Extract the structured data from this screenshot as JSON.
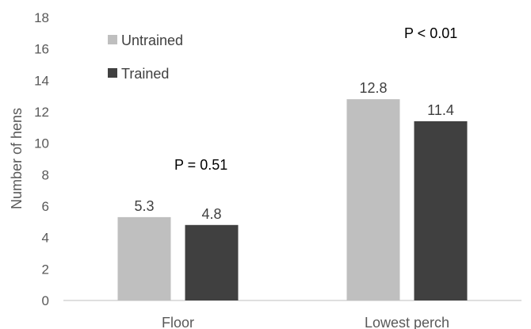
{
  "chart_data": {
    "type": "bar",
    "categories": [
      "Floor",
      "Lowest perch"
    ],
    "series": [
      {
        "name": "Untrained",
        "values": [
          5.3,
          12.8
        ],
        "color": "#bfbfbf"
      },
      {
        "name": "Trained",
        "values": [
          4.8,
          11.4
        ],
        "color": "#404040"
      }
    ],
    "data_labels": [
      [
        "5.3",
        "12.8"
      ],
      [
        "4.8",
        "11.4"
      ]
    ],
    "title": "",
    "xlabel": "",
    "ylabel": "Number of hens",
    "ylim": [
      0,
      18
    ],
    "yticks": [
      0,
      2,
      4,
      6,
      8,
      10,
      12,
      14,
      16,
      18
    ],
    "grid": false,
    "legend_position": "top-left",
    "annotations": [
      "P = 0.51",
      "P < 0.01"
    ]
  }
}
